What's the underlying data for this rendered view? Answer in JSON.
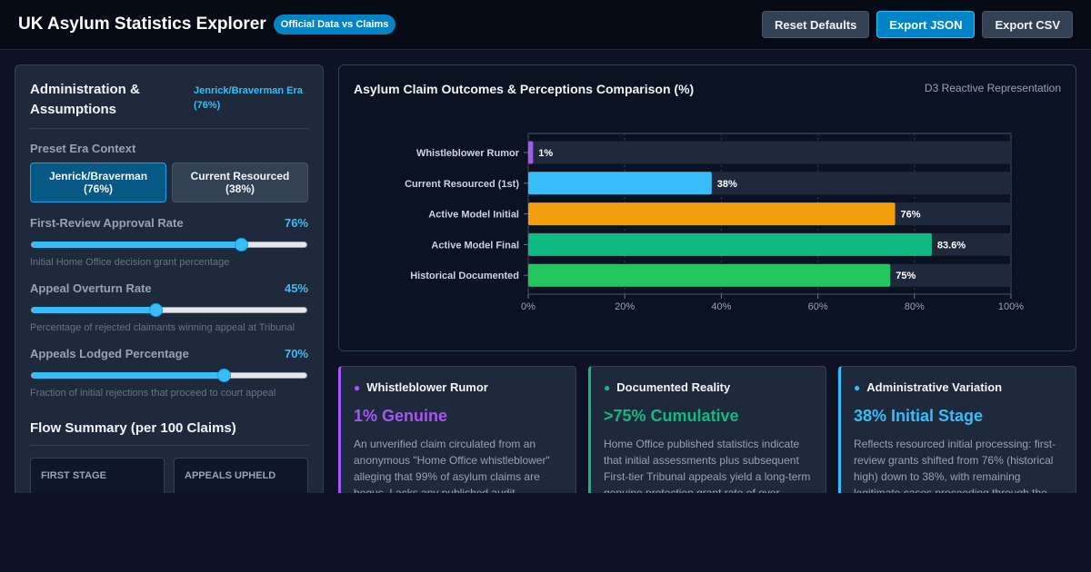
{
  "header": {
    "title": "UK Asylum Statistics Explorer",
    "badge": "Official Data vs Claims",
    "buttons": {
      "reset": "Reset Defaults",
      "export_json": "Export JSON",
      "export_csv": "Export CSV"
    }
  },
  "sidebar": {
    "title": "Administration & Assumptions",
    "era_tag": "Jenrick/Braverman Era (76%)",
    "preset_label": "Preset Era Context",
    "presets": [
      {
        "label": "Jenrick/Braverman\n(76%)",
        "active": true
      },
      {
        "label": "Current Resourced\n(38%)",
        "active": false
      }
    ],
    "sliders": [
      {
        "label": "First-Review Approval Rate",
        "value_text": "76%",
        "value": 76,
        "help": "Initial Home Office decision grant percentage"
      },
      {
        "label": "Appeal Overturn Rate",
        "value_text": "45%",
        "value": 45,
        "help": "Percentage of rejected claimants winning appeal at Tribunal"
      },
      {
        "label": "Appeals Lodged Percentage",
        "value_text": "70%",
        "value": 70,
        "help": "Fraction of initial rejections that proceed to court appeal"
      }
    ],
    "flow_title": "Flow Summary (per 100 Claims)",
    "flow_cards": [
      "FIRST STAGE",
      "APPEALS UPHELD"
    ]
  },
  "chart_panel": {
    "title": "Asylum Claim Outcomes & Perceptions Comparison (%)",
    "subtitle": "D3 Reactive Representation"
  },
  "chart_data": {
    "type": "bar",
    "orientation": "horizontal",
    "categories": [
      "Whistleblower Rumor",
      "Current Resourced (1st)",
      "Active Model Initial",
      "Active Model Final",
      "Historical Documented"
    ],
    "values": [
      1,
      38,
      76,
      83.6,
      75
    ],
    "value_labels": [
      "1%",
      "38%",
      "76%",
      "83.6%",
      "75%"
    ],
    "colors": [
      "#a855f7",
      "#38bdf8",
      "#f59e0b",
      "#10b981",
      "#22c55e"
    ],
    "xlim": [
      0,
      100
    ],
    "xticks": [
      "0%",
      "20%",
      "40%",
      "60%",
      "80%",
      "100%"
    ],
    "grid": true
  },
  "cards": [
    {
      "title": "Whistleblower Rumor",
      "stat": "1% Genuine",
      "color": "#a855f7",
      "text": "An unverified claim circulated from an anonymous \"Home Office whistleblower\" alleging that 99% of asylum claims are bogus. Lacks any published audit"
    },
    {
      "title": "Documented Reality",
      "stat": ">75% Cumulative",
      "color": "#10b981",
      "text": "Home Office published statistics indicate that initial assessments plus subsequent First-tier Tribunal appeals yield a long-term genuine protection grant rate of over"
    },
    {
      "title": "Administrative Variation",
      "stat": "38% Initial Stage",
      "color": "#38bdf8",
      "text": "Reflects resourced initial processing: first-review grants shifted from 76% (historical high) down to 38%, with remaining legitimate cases proceeding through the"
    }
  ]
}
